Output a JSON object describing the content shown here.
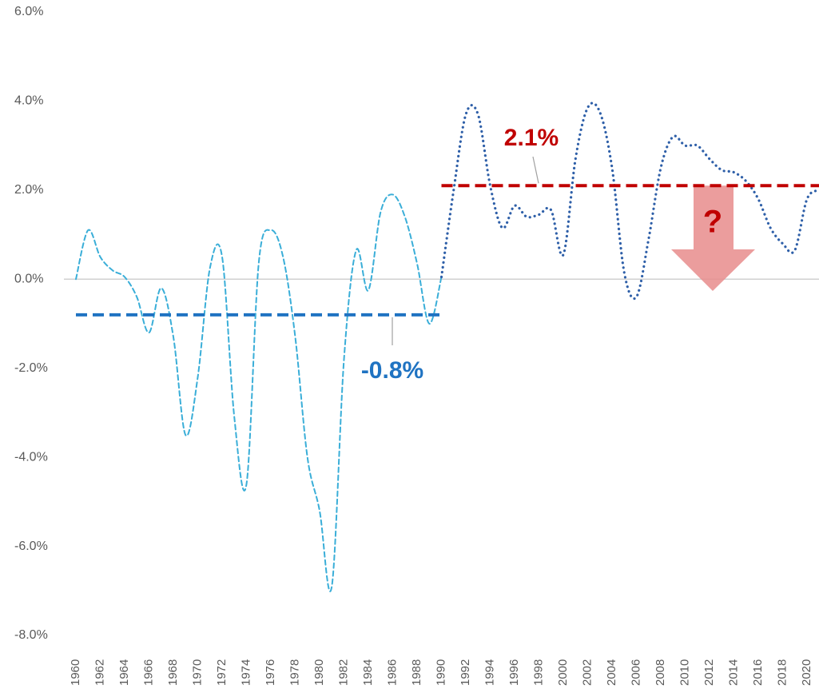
{
  "chart_data": {
    "type": "line",
    "categories": [
      "1960",
      null,
      "1962",
      null,
      "1964",
      null,
      "1966",
      null,
      "1968",
      null,
      "1970",
      null,
      "1972",
      null,
      "1974",
      null,
      "1976",
      null,
      "1978",
      null,
      "1980",
      null,
      "1982",
      null,
      "1984",
      null,
      "1986",
      null,
      "1988",
      null,
      "1990",
      null,
      "1992",
      null,
      "1994",
      null,
      "1996",
      null,
      "1998",
      null,
      "2000",
      null,
      "2002",
      null,
      "2004",
      null,
      "2006",
      null,
      "2008",
      null,
      "2010",
      null,
      "2012",
      null,
      "2014",
      null,
      "2016",
      null,
      "2018",
      null,
      "2020",
      null
    ],
    "series": [
      {
        "color": "#3aaed8",
        "dash": "dashed",
        "values": [
          0.0,
          1.1,
          0.5,
          0.2,
          0.05,
          -0.4,
          -1.2,
          -0.2,
          -1.3,
          -3.5,
          -2.2,
          0.25,
          0.5,
          -3.1,
          -4.6,
          0.35,
          1.1,
          0.5,
          -1.3,
          -4.0,
          -5.2,
          -6.9,
          -1.8,
          0.65,
          -0.25,
          1.5,
          1.9,
          1.4,
          0.35,
          -1.0,
          0.05,
          null,
          null,
          null,
          null,
          null,
          null,
          null,
          null,
          null,
          null,
          null,
          null,
          null,
          null,
          null,
          null,
          null,
          null,
          null,
          null,
          null,
          null,
          null,
          null,
          null,
          null,
          null,
          null,
          null,
          null,
          null
        ]
      },
      {
        "color": "#2e5fa8",
        "dash": "dotted",
        "values": [
          null,
          null,
          null,
          null,
          null,
          null,
          null,
          null,
          null,
          null,
          null,
          null,
          null,
          null,
          null,
          null,
          null,
          null,
          null,
          null,
          null,
          null,
          null,
          null,
          null,
          null,
          null,
          null,
          null,
          null,
          0.05,
          2.0,
          3.7,
          3.7,
          2.1,
          1.15,
          1.65,
          1.4,
          1.45,
          1.55,
          0.55,
          2.7,
          3.85,
          3.75,
          2.5,
          0.15,
          -0.4,
          0.9,
          2.5,
          3.2,
          3.0,
          3.0,
          2.7,
          2.45,
          2.4,
          2.2,
          1.8,
          1.15,
          0.8,
          0.65,
          1.8,
          2.0
        ]
      }
    ],
    "reference_lines": [
      {
        "value": -0.8,
        "label": "-0.8%",
        "color": "#1f73c2"
      },
      {
        "value": 2.1,
        "label": "2.1%",
        "color": "#c00000"
      }
    ],
    "annotations": [
      "?"
    ],
    "ylim": [
      -8,
      6
    ],
    "yticks": [
      {
        "value": -8,
        "label": "-8.0%"
      },
      {
        "value": -6,
        "label": "-6.0%"
      },
      {
        "value": -4,
        "label": "-4.0%"
      },
      {
        "value": -2,
        "label": "-2.0%"
      },
      {
        "value": 0,
        "label": "0.0%"
      },
      {
        "value": 2,
        "label": "2.0%"
      },
      {
        "value": 4,
        "label": "4.0%"
      },
      {
        "value": 6,
        "label": "6.0%"
      }
    ]
  }
}
